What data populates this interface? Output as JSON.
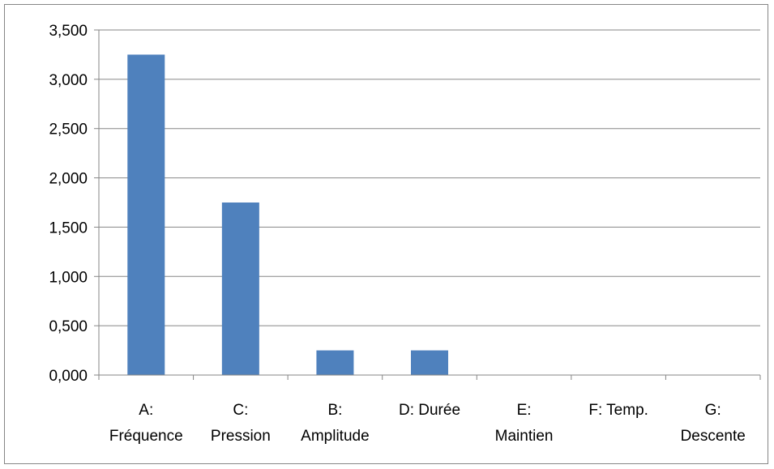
{
  "chart_data": {
    "type": "bar",
    "categories": [
      [
        "A:",
        "Fréquence"
      ],
      [
        "C:",
        "Pression"
      ],
      [
        "B:",
        "Amplitude"
      ],
      [
        "D: Durée"
      ],
      [
        "E:",
        "Maintien"
      ],
      [
        "F: Temp."
      ],
      [
        "G:",
        "Descente"
      ]
    ],
    "values": [
      3.25,
      1.75,
      0.25,
      0.25,
      0,
      0,
      0
    ],
    "ylim": [
      0,
      3.5
    ],
    "yticks": [
      "0,000",
      "0,500",
      "1,000",
      "1,500",
      "2,000",
      "2,500",
      "3,000",
      "3,500"
    ],
    "title": "",
    "xlabel": "",
    "ylabel": "",
    "grid": true,
    "colors": {
      "bar": "#4f81bd",
      "grid": "#868686",
      "axis": "#868686",
      "frame": "#868686"
    }
  }
}
